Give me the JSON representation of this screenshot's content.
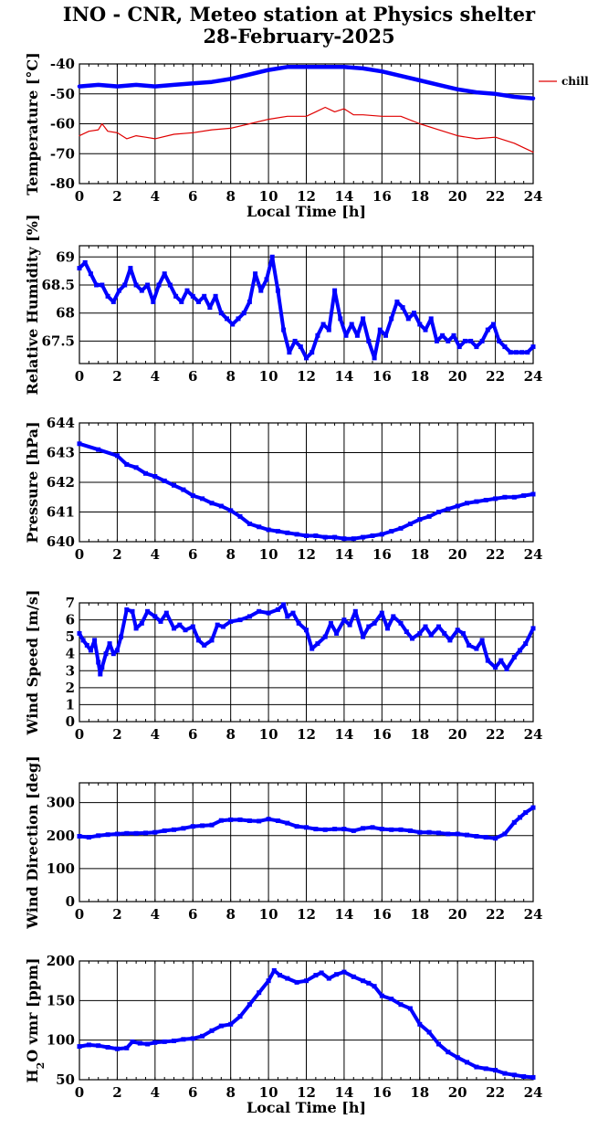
{
  "title": {
    "line1": "INO - CNR, Meteo station at Physics shelter",
    "line2": "28-February-2025"
  },
  "chart_data": [
    {
      "type": "line",
      "id": "temperature",
      "title": "",
      "xlabel": "Local Time [h]",
      "ylabel": "Temperature [°C]",
      "xlim": [
        0,
        24
      ],
      "ylim": [
        -80,
        -40
      ],
      "xticks": [
        0,
        2,
        4,
        6,
        8,
        10,
        12,
        14,
        16,
        18,
        20,
        22,
        24
      ],
      "yticks": [
        -80,
        -70,
        -60,
        -50,
        -40
      ],
      "grid": true,
      "legend": "right",
      "series": [
        {
          "name": "",
          "color": "#0000ff",
          "x": [
            0,
            1,
            2,
            3,
            4,
            5,
            6,
            7,
            8,
            9,
            10,
            11,
            12,
            13,
            14,
            15,
            16,
            17,
            18,
            19,
            20,
            21,
            22,
            23,
            24
          ],
          "y": [
            -47.5,
            -47,
            -47.5,
            -47,
            -47.5,
            -47,
            -46.5,
            -46,
            -45,
            -43.5,
            -42,
            -41,
            -41,
            -41,
            -41,
            -41.5,
            -42.5,
            -44,
            -45.5,
            -47,
            -48.5,
            -49.5,
            -50,
            -51,
            -51.5
          ]
        },
        {
          "name": "chill",
          "color": "#e00000",
          "x": [
            0,
            0.5,
            1,
            1.2,
            1.5,
            2,
            2.5,
            3,
            3.5,
            4,
            5,
            6,
            7,
            8,
            9,
            10,
            11,
            12,
            12.5,
            13,
            13.5,
            14,
            14.5,
            15,
            16,
            17,
            18,
            19,
            20,
            21,
            22,
            23,
            23.5,
            24
          ],
          "y": [
            -64,
            -62.5,
            -62,
            -60,
            -62.5,
            -63,
            -65,
            -64,
            -64.5,
            -65,
            -63.5,
            -63,
            -62,
            -61.5,
            -60,
            -58.5,
            -57.5,
            -57.5,
            -56,
            -54.5,
            -56,
            -55,
            -57,
            -57,
            -57.5,
            -57.5,
            -60,
            -62,
            -64,
            -65,
            -64.5,
            -66.5,
            -68,
            -69.5
          ]
        }
      ]
    },
    {
      "type": "scatter",
      "id": "humidity",
      "xlabel": "",
      "ylabel": "Relative Humidity [%]",
      "xlim": [
        0,
        24
      ],
      "ylim": [
        67.1,
        69.2
      ],
      "xticks": [
        0,
        2,
        4,
        6,
        8,
        10,
        12,
        14,
        16,
        18,
        20,
        22,
        24
      ],
      "yticks": [
        67.5,
        68,
        68.5,
        69
      ],
      "grid": true,
      "series": [
        {
          "name": "",
          "color": "#0000ff",
          "x": [
            0,
            0.3,
            0.6,
            0.9,
            1.2,
            1.5,
            1.8,
            2.1,
            2.4,
            2.7,
            3,
            3.3,
            3.6,
            3.9,
            4.2,
            4.5,
            4.8,
            5.1,
            5.4,
            5.7,
            6,
            6.3,
            6.6,
            6.9,
            7.2,
            7.5,
            7.8,
            8.1,
            8.4,
            8.7,
            9,
            9.3,
            9.6,
            9.9,
            10.2,
            10.5,
            10.8,
            11.1,
            11.4,
            11.7,
            12,
            12.3,
            12.6,
            12.9,
            13.2,
            13.5,
            13.8,
            14.1,
            14.4,
            14.7,
            15,
            15.3,
            15.6,
            15.9,
            16.2,
            16.5,
            16.8,
            17.1,
            17.4,
            17.7,
            18,
            18.3,
            18.6,
            18.9,
            19.2,
            19.5,
            19.8,
            20.1,
            20.4,
            20.7,
            21,
            21.3,
            21.6,
            21.9,
            22.2,
            22.5,
            22.8,
            23.1,
            23.4,
            23.7,
            24
          ],
          "y": [
            68.8,
            68.9,
            68.7,
            68.5,
            68.5,
            68.3,
            68.2,
            68.4,
            68.5,
            68.8,
            68.5,
            68.4,
            68.5,
            68.2,
            68.5,
            68.7,
            68.5,
            68.3,
            68.2,
            68.4,
            68.3,
            68.2,
            68.3,
            68.1,
            68.3,
            68,
            67.9,
            67.8,
            67.9,
            68,
            68.2,
            68.7,
            68.4,
            68.6,
            69,
            68.4,
            67.7,
            67.3,
            67.5,
            67.4,
            67.2,
            67.3,
            67.6,
            67.8,
            67.7,
            68.4,
            67.9,
            67.6,
            67.8,
            67.6,
            67.9,
            67.5,
            67.2,
            67.7,
            67.6,
            67.9,
            68.2,
            68.1,
            67.9,
            68,
            67.8,
            67.7,
            67.9,
            67.5,
            67.6,
            67.5,
            67.6,
            67.4,
            67.5,
            67.5,
            67.4,
            67.5,
            67.7,
            67.8,
            67.5,
            67.4,
            67.3,
            67.3,
            67.3,
            67.3,
            67.4
          ]
        }
      ]
    },
    {
      "type": "scatter",
      "id": "pressure",
      "xlabel": "",
      "ylabel": "Pressure [hPa]",
      "xlim": [
        0,
        24
      ],
      "ylim": [
        640,
        644
      ],
      "xticks": [
        0,
        2,
        4,
        6,
        8,
        10,
        12,
        14,
        16,
        18,
        20,
        22,
        24
      ],
      "yticks": [
        640,
        641,
        642,
        643,
        644
      ],
      "grid": true,
      "series": [
        {
          "name": "",
          "color": "#0000ff",
          "x": [
            0,
            1,
            2,
            2.5,
            3,
            3.5,
            4,
            4.5,
            5,
            5.5,
            6,
            6.5,
            7,
            7.5,
            8,
            8.5,
            9,
            9.5,
            10,
            10.5,
            11,
            11.5,
            12,
            12.5,
            13,
            13.5,
            14,
            14.5,
            15,
            15.5,
            16,
            16.5,
            17,
            17.5,
            18,
            18.5,
            19,
            19.5,
            20,
            20.5,
            21,
            21.5,
            22,
            22.5,
            23,
            23.5,
            24
          ],
          "y": [
            643.3,
            643.1,
            642.9,
            642.6,
            642.5,
            642.3,
            642.2,
            642.05,
            641.9,
            641.75,
            641.55,
            641.45,
            641.3,
            641.2,
            641.05,
            640.85,
            640.6,
            640.5,
            640.4,
            640.35,
            640.3,
            640.25,
            640.2,
            640.2,
            640.15,
            640.15,
            640.1,
            640.1,
            640.15,
            640.2,
            640.25,
            640.35,
            640.45,
            640.6,
            640.75,
            640.85,
            641,
            641.1,
            641.2,
            641.3,
            641.35,
            641.4,
            641.45,
            641.5,
            641.5,
            641.55,
            641.6
          ]
        }
      ]
    },
    {
      "type": "scatter",
      "id": "wind_speed",
      "xlabel": "",
      "ylabel": "Wind Speed [m/s]",
      "xlim": [
        0,
        24
      ],
      "ylim": [
        0,
        7
      ],
      "xticks": [
        0,
        2,
        4,
        6,
        8,
        10,
        12,
        14,
        16,
        18,
        20,
        22,
        24
      ],
      "yticks": [
        0,
        1,
        2,
        3,
        4,
        5,
        6,
        7
      ],
      "grid": true,
      "series": [
        {
          "name": "",
          "color": "#0000ff",
          "x": [
            0,
            0.2,
            0.4,
            0.6,
            0.8,
            1,
            1.1,
            1.2,
            1.4,
            1.6,
            1.8,
            2,
            2.2,
            2.5,
            2.8,
            3,
            3.3,
            3.6,
            4,
            4.3,
            4.6,
            5,
            5.3,
            5.6,
            6,
            6.3,
            6.6,
            7,
            7.3,
            7.6,
            8,
            8.5,
            9,
            9.5,
            10,
            10.5,
            10.8,
            11,
            11.3,
            11.6,
            12,
            12.3,
            12.6,
            13,
            13.3,
            13.6,
            14,
            14.3,
            14.6,
            15,
            15.3,
            15.6,
            16,
            16.3,
            16.6,
            17,
            17.3,
            17.6,
            18,
            18.3,
            18.6,
            19,
            19.3,
            19.6,
            20,
            20.3,
            20.6,
            21,
            21.3,
            21.6,
            22,
            22.3,
            22.6,
            23,
            23.3,
            23.6,
            24
          ],
          "y": [
            5.2,
            4.8,
            4.5,
            4.2,
            4.8,
            3.5,
            2.8,
            3.2,
            4,
            4.6,
            4,
            4.2,
            5,
            6.6,
            6.5,
            5.5,
            5.8,
            6.5,
            6.2,
            5.9,
            6.4,
            5.5,
            5.7,
            5.4,
            5.6,
            4.8,
            4.5,
            4.8,
            5.7,
            5.6,
            5.9,
            6,
            6.2,
            6.5,
            6.4,
            6.6,
            6.9,
            6.2,
            6.4,
            5.8,
            5.4,
            4.3,
            4.6,
            5,
            5.8,
            5.2,
            6,
            5.7,
            6.5,
            5,
            5.6,
            5.8,
            6.4,
            5.5,
            6.2,
            5.8,
            5.3,
            4.9,
            5.2,
            5.6,
            5.1,
            5.6,
            5.2,
            4.8,
            5.4,
            5.2,
            4.5,
            4.3,
            4.8,
            3.6,
            3.2,
            3.6,
            3.1,
            3.8,
            4.2,
            4.6,
            5.5
          ]
        }
      ]
    },
    {
      "type": "scatter",
      "id": "wind_direction",
      "xlabel": "",
      "ylabel": "Wind Direction [deg]",
      "xlim": [
        0,
        24
      ],
      "ylim": [
        0,
        360
      ],
      "xticks": [
        0,
        2,
        4,
        6,
        8,
        10,
        12,
        14,
        16,
        18,
        20,
        22,
        24
      ],
      "yticks": [
        0,
        100,
        200,
        300
      ],
      "grid": true,
      "series": [
        {
          "name": "",
          "color": "#0000ff",
          "x": [
            0,
            0.5,
            1,
            1.5,
            2,
            2.5,
            3,
            3.5,
            4,
            4.5,
            5,
            5.5,
            6,
            6.5,
            7,
            7.5,
            8,
            8.5,
            9,
            9.5,
            10,
            10.5,
            11,
            11.5,
            12,
            12.5,
            13,
            13.5,
            14,
            14.5,
            15,
            15.5,
            16,
            16.5,
            17,
            17.5,
            18,
            18.5,
            19,
            19.5,
            20,
            20.5,
            21,
            21.5,
            22,
            22.5,
            23,
            23.3,
            23.6,
            24
          ],
          "y": [
            198,
            195,
            200,
            203,
            205,
            207,
            207,
            208,
            210,
            215,
            218,
            222,
            228,
            230,
            232,
            246,
            248,
            248,
            245,
            244,
            250,
            245,
            238,
            228,
            225,
            220,
            218,
            220,
            220,
            215,
            222,
            225,
            220,
            218,
            218,
            215,
            210,
            210,
            208,
            205,
            205,
            202,
            198,
            195,
            192,
            205,
            240,
            255,
            270,
            285
          ]
        }
      ]
    },
    {
      "type": "scatter",
      "id": "h2o_vmr",
      "xlabel": "Local Time [h]",
      "ylabel": "H2O vmr [ppm]",
      "ylabel_html": {
        "pre": "H",
        "sub": "2",
        "post": "O vmr [ppm]"
      },
      "xlim": [
        0,
        24
      ],
      "ylim": [
        50,
        200
      ],
      "xticks": [
        0,
        2,
        4,
        6,
        8,
        10,
        12,
        14,
        16,
        18,
        20,
        22,
        24
      ],
      "yticks": [
        50,
        100,
        150,
        200
      ],
      "grid": true,
      "series": [
        {
          "name": "",
          "color": "#0000ff",
          "x": [
            0,
            0.5,
            1,
            1.5,
            2,
            2.5,
            2.8,
            3.2,
            3.6,
            4,
            4.5,
            5,
            5.5,
            6,
            6.5,
            7,
            7.5,
            8,
            8.5,
            9,
            9.5,
            10,
            10.3,
            10.6,
            11,
            11.5,
            12,
            12.5,
            12.8,
            13.2,
            13.6,
            14,
            14.5,
            15,
            15.3,
            15.6,
            16,
            16.5,
            17,
            17.5,
            18,
            18.5,
            19,
            19.5,
            20,
            20.5,
            21,
            21.5,
            22,
            22.5,
            23,
            23.5,
            24
          ],
          "y": [
            92,
            94,
            93,
            91,
            89,
            90,
            98,
            96,
            95,
            97,
            98,
            99,
            101,
            102,
            105,
            112,
            118,
            120,
            130,
            145,
            160,
            175,
            188,
            182,
            178,
            173,
            175,
            182,
            185,
            178,
            183,
            186,
            180,
            175,
            172,
            168,
            156,
            152,
            145,
            140,
            120,
            110,
            95,
            85,
            78,
            72,
            66,
            64,
            62,
            58,
            56,
            54,
            53
          ]
        }
      ]
    }
  ]
}
